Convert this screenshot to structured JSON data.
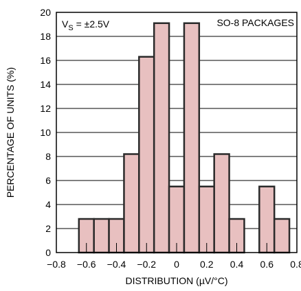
{
  "chart_data": {
    "type": "bar",
    "x": [
      -0.6,
      -0.5,
      -0.4,
      -0.3,
      -0.2,
      -0.1,
      0.0,
      0.1,
      0.2,
      0.3,
      0.4,
      0.6,
      0.7
    ],
    "values": [
      2.8,
      2.8,
      2.8,
      8.2,
      16.3,
      19.1,
      5.5,
      19.1,
      5.5,
      8.2,
      2.8,
      5.5,
      2.8
    ],
    "bin_width": 0.1,
    "xlabel": "DISTRIBUTION (µV/°C)",
    "ylabel": "PERCENTAGE OF UNITS (%)",
    "xlim": [
      -0.8,
      0.8
    ],
    "ylim": [
      0,
      20
    ],
    "xticks": [
      -0.8,
      -0.6,
      -0.4,
      -0.2,
      0,
      0.2,
      0.4,
      0.6,
      0.8
    ],
    "yticks": [
      0,
      2,
      4,
      6,
      8,
      10,
      12,
      14,
      16,
      18,
      20
    ],
    "grid": true,
    "annotations": {
      "supply": {
        "main": "V",
        "sub": "S",
        "rest": " = ±2.5V"
      },
      "package": "SO-8 PACKAGES"
    }
  },
  "colors": {
    "bar_fill": "#e8c0c0",
    "bar_stroke": "#2a2a2a",
    "grid": "#000000",
    "axes": "#000000"
  }
}
